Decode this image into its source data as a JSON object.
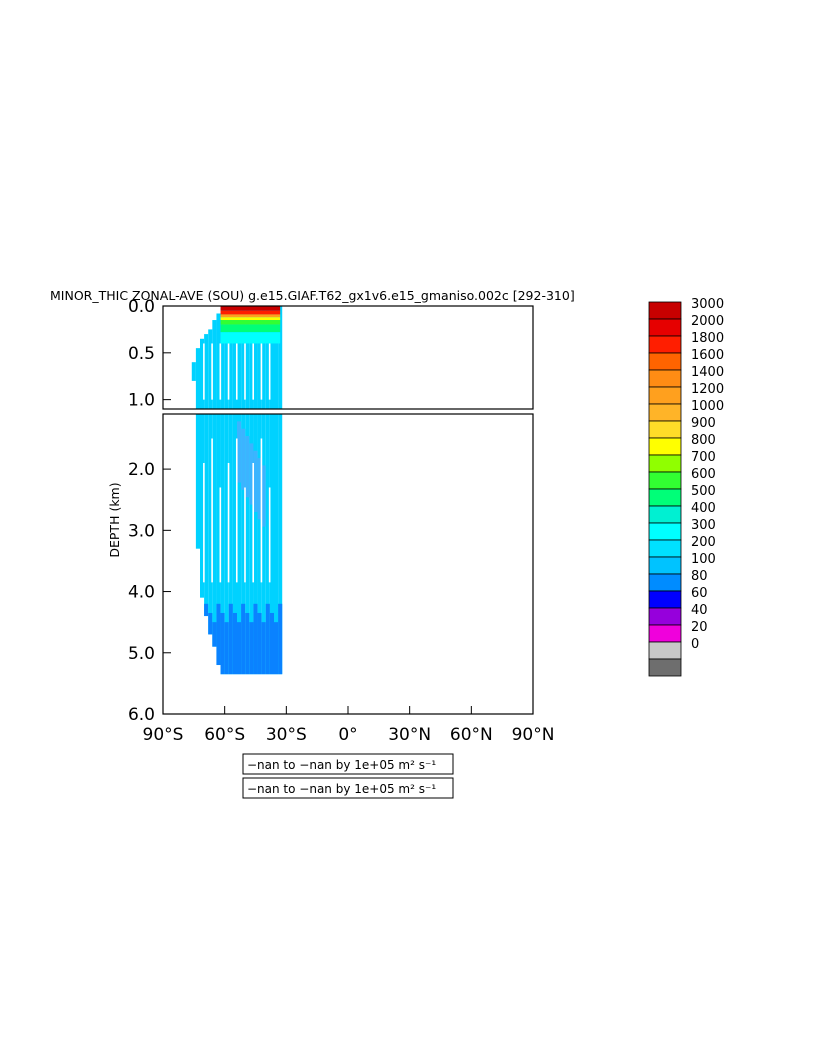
{
  "chart_data": {
    "type": "heatmap",
    "title": "MINOR_THIC ZONAL-AVE (SOU) g.e15.GIAF.T62_gx1v6.e15_gmaniso.002c [292-310]",
    "xlabel": "",
    "ylabel": "DEPTH (km)",
    "x_ticks": [
      "90°S",
      "60°S",
      "30°S",
      "0°",
      "30°N",
      "60°N",
      "90°N"
    ],
    "x_tick_values": [
      -90,
      -60,
      -30,
      0,
      30,
      60,
      90
    ],
    "xlim": [
      -90,
      90
    ],
    "y_ticks_upper": [
      "0.0",
      "0.5",
      "1.0"
    ],
    "y_tick_values_upper": [
      0.0,
      0.5,
      1.0
    ],
    "ylim_upper": [
      0.0,
      1.1
    ],
    "y_ticks_lower": [
      "2.0",
      "3.0",
      "4.0",
      "5.0",
      "6.0"
    ],
    "y_tick_values_lower": [
      2.0,
      3.0,
      4.0,
      5.0,
      6.0
    ],
    "ylim_lower": [
      1.1,
      6.0
    ],
    "colorbar": {
      "labels": [
        "3000",
        "2000",
        "1800",
        "1600",
        "1400",
        "1200",
        "1000",
        "900",
        "800",
        "700",
        "600",
        "500",
        "400",
        "300",
        "200",
        "100",
        "80",
        "60",
        "40",
        "20",
        "0"
      ],
      "colors": [
        "#c80000",
        "#e60000",
        "#ff1e00",
        "#ff6400",
        "#ff8c14",
        "#ffa01e",
        "#ffb428",
        "#ffdc28",
        "#ffff00",
        "#90ff00",
        "#32ff32",
        "#00ff78",
        "#00f0d2",
        "#00ffff",
        "#00e1ff",
        "#00c3ff",
        "#008cff",
        "#0000ff",
        "#9600dc",
        "#f000dc",
        "#c8c8c8",
        "#6e6e6e"
      ]
    },
    "field": {
      "comment_free": true,
      "columns": [
        {
          "lat": -75,
          "top": 0.6,
          "bottom": 0.8,
          "value": 350
        },
        {
          "lat": -73,
          "top": 0.45,
          "bottom": 3.3,
          "value": 350
        },
        {
          "lat": -71,
          "top": 0.35,
          "bottom": 4.1,
          "value": 350
        },
        {
          "lat": -69,
          "top": 0.3,
          "bottom": 4.4,
          "value": 350
        },
        {
          "lat": -67,
          "top": 0.25,
          "bottom": 4.7,
          "value": 350
        },
        {
          "lat": -65,
          "top": 0.15,
          "bottom": 4.9,
          "value": 350
        },
        {
          "lat": -63,
          "top": 0.08,
          "bottom": 5.2,
          "value": 350
        },
        {
          "lat": -61,
          "top": 0.02,
          "bottom": 5.35,
          "value": 350
        },
        {
          "lat": -59,
          "top": 0.0,
          "bottom": 5.35,
          "value": 350
        },
        {
          "lat": -57,
          "top": 0.0,
          "bottom": 5.35,
          "value": 350
        },
        {
          "lat": -55,
          "top": 0.0,
          "bottom": 5.35,
          "value": 350
        },
        {
          "lat": -53,
          "top": 0.0,
          "bottom": 5.35,
          "value": 350
        },
        {
          "lat": -51,
          "top": 0.0,
          "bottom": 5.35,
          "value": 350
        },
        {
          "lat": -49,
          "top": 0.0,
          "bottom": 5.35,
          "value": 350
        },
        {
          "lat": -47,
          "top": 0.0,
          "bottom": 5.35,
          "value": 350
        },
        {
          "lat": -45,
          "top": 0.0,
          "bottom": 5.35,
          "value": 350
        },
        {
          "lat": -43,
          "top": 0.0,
          "bottom": 5.35,
          "value": 350
        },
        {
          "lat": -41,
          "top": 0.0,
          "bottom": 5.35,
          "value": 350
        },
        {
          "lat": -39,
          "top": 0.0,
          "bottom": 5.35,
          "value": 350
        },
        {
          "lat": -37,
          "top": 0.0,
          "bottom": 5.35,
          "value": 350
        },
        {
          "lat": -35,
          "top": 0.0,
          "bottom": 5.35,
          "value": 350
        },
        {
          "lat": -33,
          "top": 0.0,
          "bottom": 5.35,
          "value": 350
        }
      ]
    },
    "legend_boxes": [
      "−nan to −nan by 1e+05 m² s⁻¹",
      "−nan to −nan by 1e+05 m² s⁻¹"
    ]
  }
}
